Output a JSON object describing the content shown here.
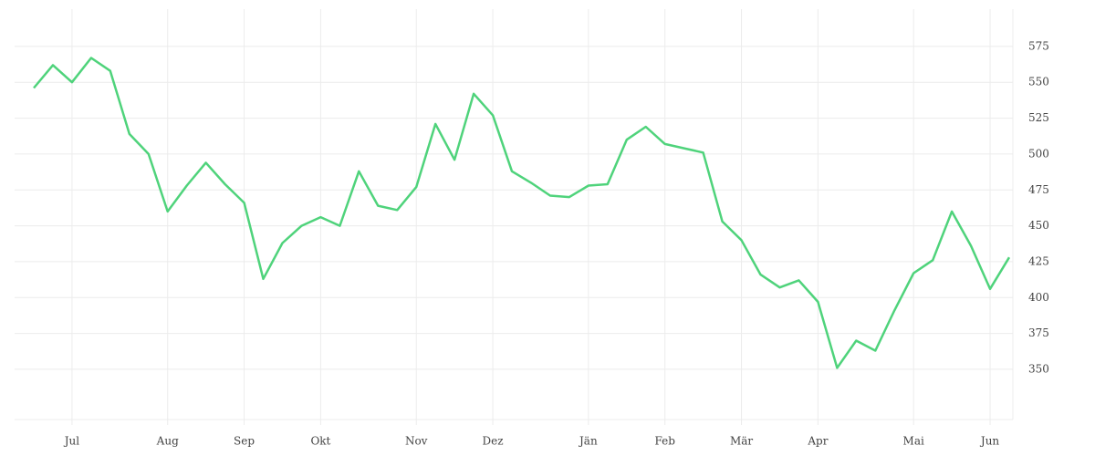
{
  "chart_data": {
    "type": "line",
    "categories": [
      null,
      null,
      "Jul",
      null,
      null,
      null,
      null,
      "Aug",
      null,
      null,
      null,
      "Sep",
      null,
      null,
      null,
      "Okt",
      null,
      null,
      null,
      null,
      "Nov",
      null,
      null,
      null,
      "Dez",
      null,
      null,
      null,
      null,
      "Jän",
      null,
      null,
      null,
      "Feb",
      null,
      null,
      null,
      "Mär",
      null,
      null,
      null,
      "Apr",
      null,
      null,
      null,
      null,
      "Mai",
      null,
      null,
      null,
      "Jun",
      null
    ],
    "values": [
      546,
      562,
      550,
      567,
      558,
      514,
      500,
      460,
      478,
      494,
      479,
      466,
      413,
      438,
      450,
      456,
      450,
      488,
      464,
      461,
      477,
      521,
      496,
      542,
      527,
      488,
      480,
      471,
      470,
      478,
      479,
      510,
      519,
      507,
      504,
      501,
      453,
      440,
      416,
      407,
      412,
      397,
      351,
      370,
      363,
      391,
      417,
      426,
      460,
      436,
      406,
      428
    ],
    "color": "#4fd37b",
    "ylim": [
      315,
      601
    ],
    "yticks": [
      350,
      375,
      400,
      425,
      450,
      475,
      500,
      525,
      550,
      575
    ],
    "grid": true
  }
}
